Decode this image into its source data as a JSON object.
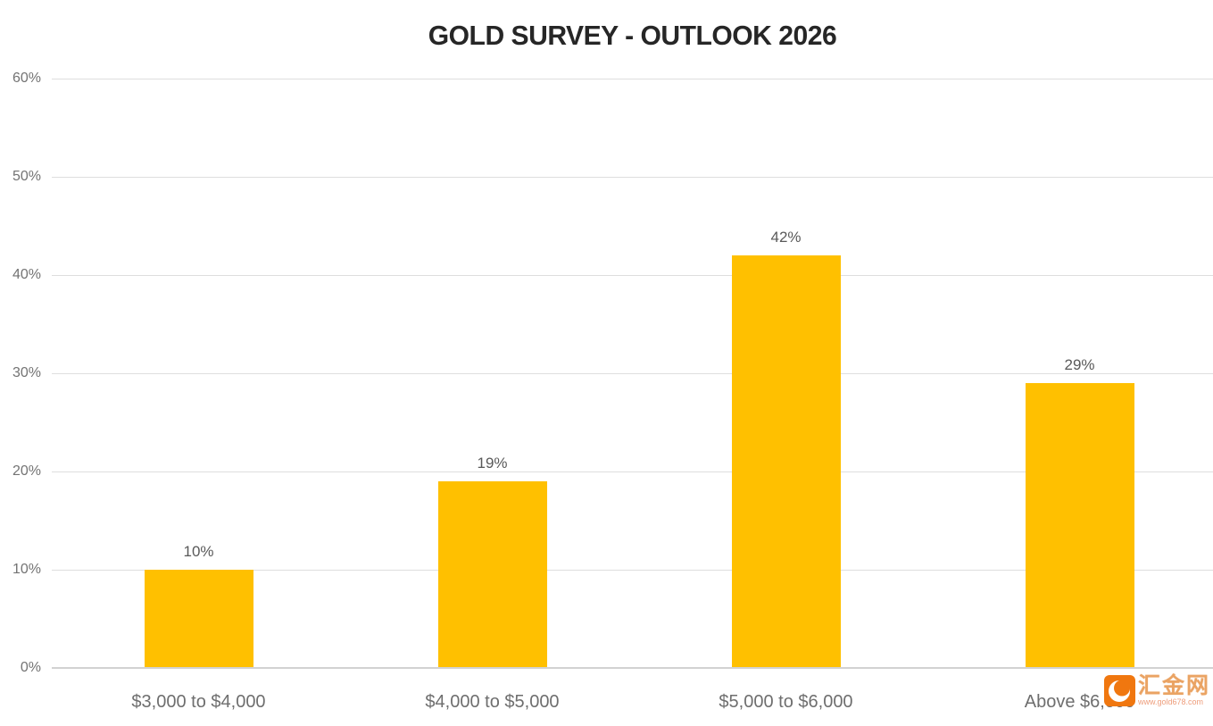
{
  "chart_data": {
    "type": "bar",
    "title": "GOLD SURVEY - OUTLOOK 2026",
    "categories": [
      "$3,000 to $4,000",
      "$4,000 to $5,000",
      "$5,000 to $6,000",
      "Above $6,000"
    ],
    "values": [
      10,
      19,
      42,
      29
    ],
    "data_labels": [
      "10%",
      "19%",
      "42%",
      "29%"
    ],
    "xlabel": "",
    "ylabel": "",
    "ylim": [
      0,
      60
    ],
    "y_ticks": [
      0,
      10,
      20,
      30,
      40,
      50,
      60
    ],
    "y_tick_labels": [
      "0%",
      "10%",
      "20%",
      "30%",
      "40%",
      "50%",
      "60%"
    ],
    "grid": true,
    "legend": false,
    "bar_color": "#FFC000",
    "title_color": "#262626",
    "data_label_color": "#595959",
    "axis_label_color": "#6E6E6E",
    "gridline_color": "#DEDEDE"
  },
  "watermark": {
    "site_name": "汇金网",
    "site_url": "www.gold678.com",
    "logo_color": "#F0770F"
  }
}
